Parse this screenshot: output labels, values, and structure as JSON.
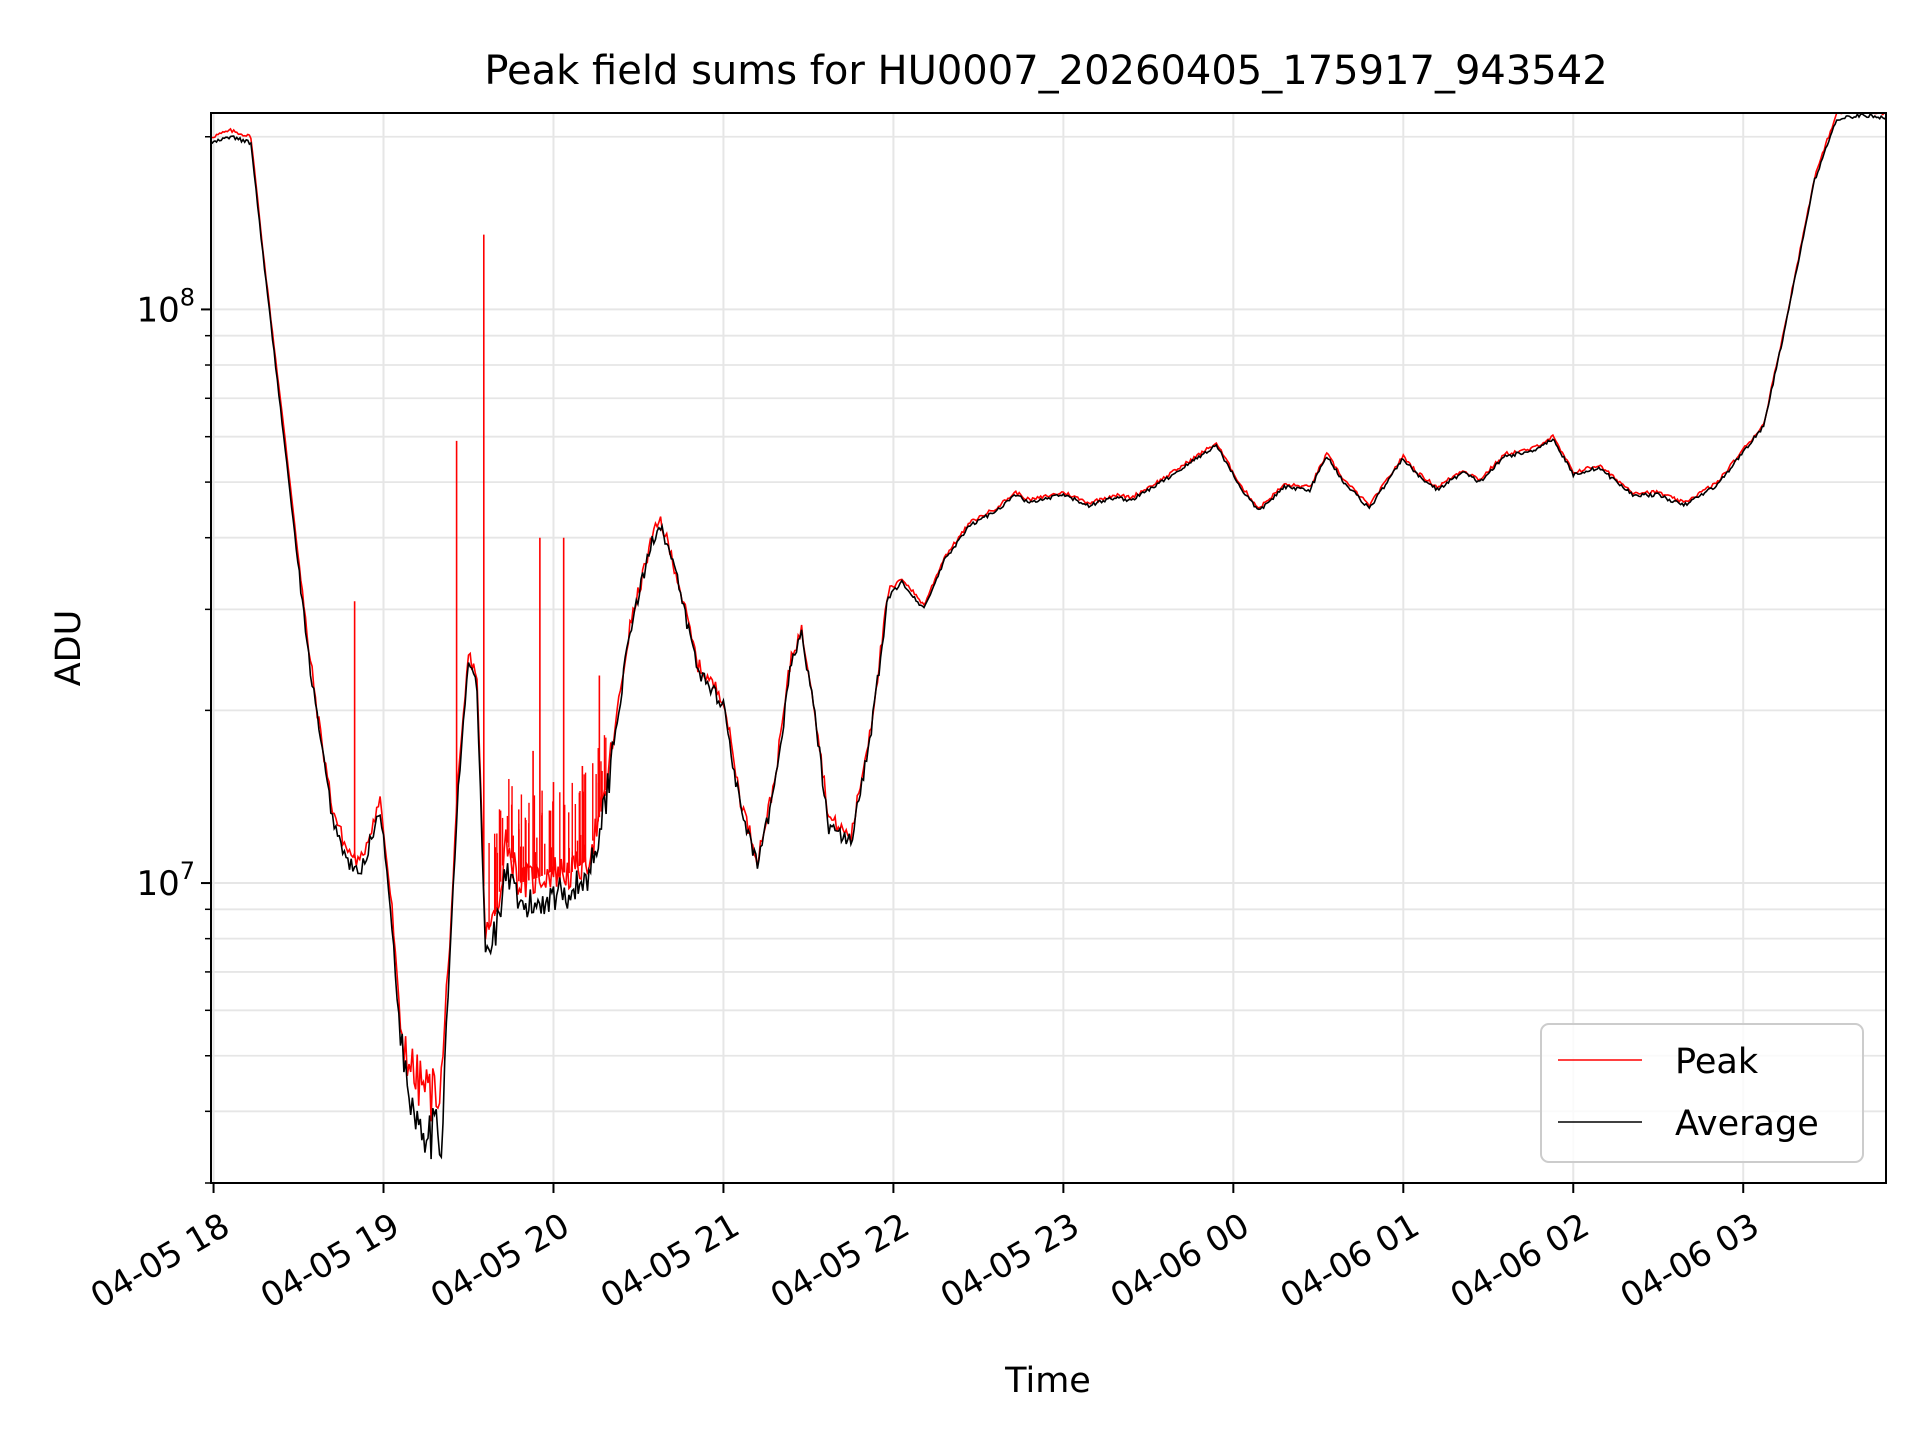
{
  "chart_data": {
    "type": "line",
    "title": "Peak field sums for HU0007_20260405_175917_943542",
    "xlabel": "Time",
    "ylabel": "ADU",
    "yscale": "log",
    "ylim": [
      3000000,
      220000000
    ],
    "xlim_hours": [
      17.985,
      27.84
    ],
    "grid": true,
    "legend_position": "lower-right",
    "x_ticks": [
      {
        "h": 18,
        "label": "04-05 18"
      },
      {
        "h": 19,
        "label": "04-05 19"
      },
      {
        "h": 20,
        "label": "04-05 20"
      },
      {
        "h": 21,
        "label": "04-05 21"
      },
      {
        "h": 22,
        "label": "04-05 22"
      },
      {
        "h": 23,
        "label": "04-05 23"
      },
      {
        "h": 24,
        "label": "04-06 00"
      },
      {
        "h": 25,
        "label": "04-06 01"
      },
      {
        "h": 26,
        "label": "04-06 02"
      },
      {
        "h": 27,
        "label": "04-06 03"
      }
    ],
    "y_ticks": [
      {
        "value": 10000000,
        "base": "10",
        "exp": "7"
      },
      {
        "value": 100000000,
        "base": "10",
        "exp": "8"
      }
    ],
    "series": [
      {
        "name": "Peak",
        "color": "#ff0000",
        "points": [
          [
            17.99,
            200000000
          ],
          [
            18.1,
            205000000
          ],
          [
            18.22,
            200000000
          ],
          [
            18.3,
            120000000
          ],
          [
            18.45,
            50000000
          ],
          [
            18.55,
            27000000
          ],
          [
            18.62,
            19000000
          ],
          [
            18.7,
            13500000
          ],
          [
            18.78,
            11500000
          ],
          [
            18.86,
            10800000
          ],
          [
            18.91,
            12000000
          ],
          [
            18.98,
            14000000
          ],
          [
            19.05,
            9000000
          ],
          [
            19.1,
            5600000
          ],
          [
            19.18,
            4600000
          ],
          [
            19.28,
            4300000
          ],
          [
            19.34,
            4500000
          ],
          [
            19.38,
            7000000
          ],
          [
            19.44,
            15000000
          ],
          [
            19.5,
            25000000
          ],
          [
            19.55,
            23000000
          ],
          [
            19.6,
            8000000
          ],
          [
            19.67,
            9000000
          ],
          [
            19.72,
            12000000
          ],
          [
            19.8,
            10000000
          ],
          [
            19.9,
            10200000
          ],
          [
            20.0,
            10500000
          ],
          [
            20.1,
            10400000
          ],
          [
            20.2,
            11000000
          ],
          [
            20.3,
            14000000
          ],
          [
            20.45,
            28000000
          ],
          [
            20.58,
            40000000
          ],
          [
            20.63,
            43000000
          ],
          [
            20.72,
            35000000
          ],
          [
            20.85,
            24000000
          ],
          [
            21.0,
            21000000
          ],
          [
            21.1,
            14000000
          ],
          [
            21.2,
            11000000
          ],
          [
            21.3,
            15000000
          ],
          [
            21.4,
            25000000
          ],
          [
            21.46,
            27500000
          ],
          [
            21.52,
            22000000
          ],
          [
            21.62,
            13000000
          ],
          [
            21.75,
            12000000
          ],
          [
            21.87,
            19000000
          ],
          [
            21.97,
            32000000
          ],
          [
            22.05,
            34000000
          ],
          [
            22.18,
            30500000
          ],
          [
            22.3,
            37000000
          ],
          [
            22.45,
            42500000
          ],
          [
            22.6,
            45000000
          ],
          [
            22.72,
            48000000
          ],
          [
            22.8,
            46500000
          ],
          [
            23.0,
            48000000
          ],
          [
            23.15,
            46000000
          ],
          [
            23.3,
            47500000
          ],
          [
            23.4,
            47000000
          ],
          [
            23.6,
            51000000
          ],
          [
            23.9,
            58500000
          ],
          [
            24.05,
            49000000
          ],
          [
            24.15,
            45000000
          ],
          [
            24.3,
            49500000
          ],
          [
            24.45,
            49000000
          ],
          [
            24.55,
            56000000
          ],
          [
            24.65,
            50500000
          ],
          [
            24.8,
            45500000
          ],
          [
            25.0,
            55500000
          ],
          [
            25.08,
            52000000
          ],
          [
            25.2,
            49000000
          ],
          [
            25.35,
            52500000
          ],
          [
            25.45,
            50500000
          ],
          [
            25.6,
            56000000
          ],
          [
            25.75,
            57000000
          ],
          [
            25.88,
            60000000
          ],
          [
            26.0,
            52000000
          ],
          [
            26.15,
            53500000
          ],
          [
            26.35,
            48000000
          ],
          [
            26.5,
            48000000
          ],
          [
            26.65,
            46000000
          ],
          [
            26.85,
            50000000
          ],
          [
            27.0,
            57000000
          ],
          [
            27.12,
            63000000
          ],
          [
            27.25,
            95000000
          ],
          [
            27.42,
            170000000
          ],
          [
            27.55,
            220000000
          ],
          [
            27.7,
            222000000
          ],
          [
            27.84,
            220000000
          ]
        ],
        "spikes": [
          [
            18.83,
            31000000
          ],
          [
            19.43,
            59000000
          ],
          [
            19.59,
            135000000
          ],
          [
            19.92,
            40000000
          ],
          [
            20.06,
            40000000
          ],
          [
            20.27,
            23000000
          ],
          [
            19.88,
            17000000
          ],
          [
            20.0,
            15000000
          ],
          [
            20.17,
            16000000
          ]
        ]
      },
      {
        "name": "Average",
        "color": "#000000",
        "points": [
          [
            17.99,
            195000000
          ],
          [
            18.1,
            200000000
          ],
          [
            18.22,
            195000000
          ],
          [
            18.3,
            118000000
          ],
          [
            18.45,
            48000000
          ],
          [
            18.55,
            26000000
          ],
          [
            18.62,
            18500000
          ],
          [
            18.7,
            13000000
          ],
          [
            18.78,
            11000000
          ],
          [
            18.86,
            10300000
          ],
          [
            18.91,
            11500000
          ],
          [
            18.98,
            13500000
          ],
          [
            19.05,
            8500000
          ],
          [
            19.1,
            5300000
          ],
          [
            19.18,
            4000000
          ],
          [
            19.28,
            3700000
          ],
          [
            19.34,
            3600000
          ],
          [
            19.38,
            6500000
          ],
          [
            19.44,
            14500000
          ],
          [
            19.5,
            24500000
          ],
          [
            19.55,
            22000000
          ],
          [
            19.6,
            7500000
          ],
          [
            19.67,
            8500000
          ],
          [
            19.72,
            10500000
          ],
          [
            19.8,
            9000000
          ],
          [
            19.9,
            9200000
          ],
          [
            20.0,
            9600000
          ],
          [
            20.1,
            9700000
          ],
          [
            20.2,
            10200000
          ],
          [
            20.3,
            13500000
          ],
          [
            20.45,
            27500000
          ],
          [
            20.58,
            39500000
          ],
          [
            20.63,
            42500000
          ],
          [
            20.72,
            34500000
          ],
          [
            20.85,
            23500000
          ],
          [
            21.0,
            20500000
          ],
          [
            21.1,
            13500000
          ],
          [
            21.2,
            10700000
          ],
          [
            21.3,
            14500000
          ],
          [
            21.4,
            24500000
          ],
          [
            21.46,
            27000000
          ],
          [
            21.52,
            21500000
          ],
          [
            21.62,
            12500000
          ],
          [
            21.75,
            11800000
          ],
          [
            21.87,
            18500000
          ],
          [
            21.97,
            31500000
          ],
          [
            22.05,
            33500000
          ],
          [
            22.18,
            30000000
          ],
          [
            22.3,
            36500000
          ],
          [
            22.45,
            42000000
          ],
          [
            22.6,
            44500000
          ],
          [
            22.72,
            47500000
          ],
          [
            22.8,
            46000000
          ],
          [
            23.0,
            47500000
          ],
          [
            23.15,
            45500000
          ],
          [
            23.3,
            47000000
          ],
          [
            23.4,
            46500000
          ],
          [
            23.6,
            50500000
          ],
          [
            23.9,
            58000000
          ],
          [
            24.05,
            48500000
          ],
          [
            24.15,
            44500000
          ],
          [
            24.3,
            49000000
          ],
          [
            24.45,
            48500000
          ],
          [
            24.55,
            55500000
          ],
          [
            24.65,
            50000000
          ],
          [
            24.8,
            45000000
          ],
          [
            25.0,
            55000000
          ],
          [
            25.08,
            51500000
          ],
          [
            25.2,
            48500000
          ],
          [
            25.35,
            52000000
          ],
          [
            25.45,
            50000000
          ],
          [
            25.6,
            55500000
          ],
          [
            25.75,
            56500000
          ],
          [
            25.88,
            59500000
          ],
          [
            26.0,
            51500000
          ],
          [
            26.15,
            53000000
          ],
          [
            26.35,
            47500000
          ],
          [
            26.5,
            47500000
          ],
          [
            26.65,
            45500000
          ],
          [
            26.85,
            49500000
          ],
          [
            27.0,
            56500000
          ],
          [
            27.12,
            62500000
          ],
          [
            27.25,
            94000000
          ],
          [
            27.42,
            168000000
          ],
          [
            27.55,
            215000000
          ],
          [
            27.7,
            218000000
          ],
          [
            27.84,
            216000000
          ]
        ]
      }
    ]
  }
}
